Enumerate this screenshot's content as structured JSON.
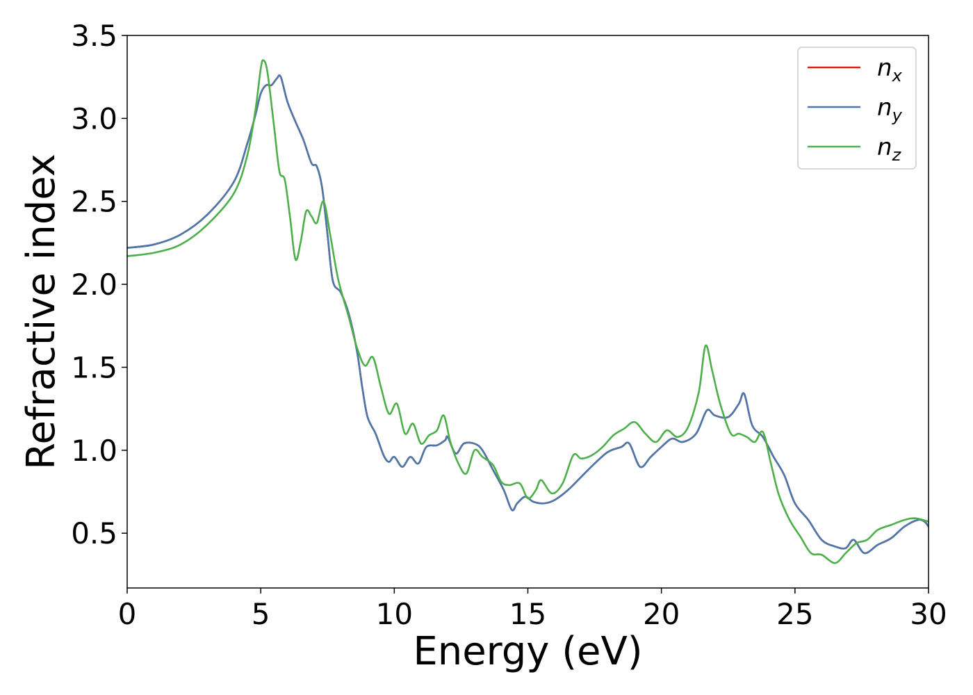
{
  "chart_data": {
    "type": "line",
    "title": "",
    "xlabel": "Energy (eV)",
    "ylabel": "Refractive index",
    "xlim": [
      0,
      30
    ],
    "ylim": [
      0.17,
      3.5
    ],
    "xticks": [
      0,
      5,
      10,
      15,
      20,
      25,
      30
    ],
    "yticks": [
      0.5,
      1.0,
      1.5,
      2.0,
      2.5,
      3.0,
      3.5
    ],
    "xtick_labels": [
      "0",
      "5",
      "10",
      "15",
      "20",
      "25",
      "30"
    ],
    "ytick_labels": [
      "0.5",
      "1.0",
      "1.5",
      "2.0",
      "2.5",
      "3.0",
      "3.5"
    ],
    "grid": false,
    "legend_position": "top-right",
    "series": [
      {
        "name": "n_x",
        "legend_base": "n",
        "legend_sub": "x",
        "color": "#e41a1c",
        "points": [
          [
            0,
            2.22
          ],
          [
            1,
            2.24
          ],
          [
            2,
            2.3
          ],
          [
            3,
            2.42
          ],
          [
            4,
            2.62
          ],
          [
            4.5,
            2.85
          ],
          [
            4.8,
            3.02
          ],
          [
            5.0,
            3.15
          ],
          [
            5.2,
            3.2
          ],
          [
            5.4,
            3.2
          ],
          [
            5.6,
            3.24
          ],
          [
            5.75,
            3.25
          ],
          [
            6.0,
            3.1
          ],
          [
            6.3,
            2.98
          ],
          [
            6.6,
            2.87
          ],
          [
            6.9,
            2.73
          ],
          [
            7.1,
            2.71
          ],
          [
            7.3,
            2.58
          ],
          [
            7.5,
            2.3
          ],
          [
            7.7,
            2.02
          ],
          [
            8.0,
            1.95
          ],
          [
            8.3,
            1.82
          ],
          [
            8.6,
            1.6
          ],
          [
            8.8,
            1.38
          ],
          [
            9.0,
            1.2
          ],
          [
            9.3,
            1.1
          ],
          [
            9.6,
            0.97
          ],
          [
            9.8,
            0.93
          ],
          [
            10.0,
            0.96
          ],
          [
            10.3,
            0.9
          ],
          [
            10.6,
            0.96
          ],
          [
            10.9,
            0.92
          ],
          [
            11.2,
            1.02
          ],
          [
            11.6,
            1.03
          ],
          [
            11.9,
            1.06
          ],
          [
            12.0,
            1.08
          ],
          [
            12.3,
            0.98
          ],
          [
            12.6,
            1.04
          ],
          [
            13.0,
            1.04
          ],
          [
            13.3,
            1.0
          ],
          [
            13.7,
            0.88
          ],
          [
            14.1,
            0.76
          ],
          [
            14.4,
            0.64
          ],
          [
            14.6,
            0.68
          ],
          [
            14.9,
            0.72
          ],
          [
            15.2,
            0.69
          ],
          [
            15.6,
            0.68
          ],
          [
            16.0,
            0.7
          ],
          [
            16.5,
            0.76
          ],
          [
            17.0,
            0.84
          ],
          [
            17.5,
            0.92
          ],
          [
            18.0,
            0.99
          ],
          [
            18.5,
            1.02
          ],
          [
            18.8,
            1.04
          ],
          [
            19.2,
            0.9
          ],
          [
            19.6,
            0.96
          ],
          [
            20.0,
            1.02
          ],
          [
            20.4,
            1.07
          ],
          [
            20.8,
            1.05
          ],
          [
            21.3,
            1.1
          ],
          [
            21.7,
            1.24
          ],
          [
            22.0,
            1.21
          ],
          [
            22.5,
            1.2
          ],
          [
            22.9,
            1.28
          ],
          [
            23.1,
            1.34
          ],
          [
            23.4,
            1.15
          ],
          [
            23.8,
            1.08
          ],
          [
            24.2,
            0.96
          ],
          [
            24.6,
            0.85
          ],
          [
            25.0,
            0.68
          ],
          [
            25.5,
            0.58
          ],
          [
            26.0,
            0.46
          ],
          [
            26.5,
            0.42
          ],
          [
            26.9,
            0.41
          ],
          [
            27.2,
            0.46
          ],
          [
            27.6,
            0.38
          ],
          [
            28.1,
            0.43
          ],
          [
            28.6,
            0.47
          ],
          [
            29.1,
            0.54
          ],
          [
            29.6,
            0.58
          ],
          [
            29.85,
            0.57
          ],
          [
            30.0,
            0.54
          ]
        ]
      },
      {
        "name": "n_y",
        "legend_base": "n",
        "legend_sub": "y",
        "color": "#4a78ab",
        "points": [
          [
            0,
            2.22
          ],
          [
            1,
            2.24
          ],
          [
            2,
            2.3
          ],
          [
            3,
            2.42
          ],
          [
            4,
            2.62
          ],
          [
            4.5,
            2.85
          ],
          [
            4.8,
            3.02
          ],
          [
            5.0,
            3.15
          ],
          [
            5.2,
            3.2
          ],
          [
            5.4,
            3.2
          ],
          [
            5.6,
            3.24
          ],
          [
            5.75,
            3.25
          ],
          [
            6.0,
            3.1
          ],
          [
            6.3,
            2.98
          ],
          [
            6.6,
            2.87
          ],
          [
            6.9,
            2.73
          ],
          [
            7.1,
            2.71
          ],
          [
            7.3,
            2.58
          ],
          [
            7.5,
            2.3
          ],
          [
            7.7,
            2.02
          ],
          [
            8.0,
            1.95
          ],
          [
            8.3,
            1.82
          ],
          [
            8.6,
            1.6
          ],
          [
            8.8,
            1.38
          ],
          [
            9.0,
            1.2
          ],
          [
            9.3,
            1.1
          ],
          [
            9.6,
            0.97
          ],
          [
            9.8,
            0.93
          ],
          [
            10.0,
            0.96
          ],
          [
            10.3,
            0.9
          ],
          [
            10.6,
            0.96
          ],
          [
            10.9,
            0.92
          ],
          [
            11.2,
            1.02
          ],
          [
            11.6,
            1.03
          ],
          [
            11.9,
            1.06
          ],
          [
            12.0,
            1.08
          ],
          [
            12.3,
            0.98
          ],
          [
            12.6,
            1.04
          ],
          [
            13.0,
            1.04
          ],
          [
            13.3,
            1.0
          ],
          [
            13.7,
            0.88
          ],
          [
            14.1,
            0.76
          ],
          [
            14.4,
            0.64
          ],
          [
            14.6,
            0.68
          ],
          [
            14.9,
            0.72
          ],
          [
            15.2,
            0.69
          ],
          [
            15.6,
            0.68
          ],
          [
            16.0,
            0.7
          ],
          [
            16.5,
            0.76
          ],
          [
            17.0,
            0.84
          ],
          [
            17.5,
            0.92
          ],
          [
            18.0,
            0.99
          ],
          [
            18.5,
            1.02
          ],
          [
            18.8,
            1.04
          ],
          [
            19.2,
            0.9
          ],
          [
            19.6,
            0.96
          ],
          [
            20.0,
            1.02
          ],
          [
            20.4,
            1.07
          ],
          [
            20.8,
            1.05
          ],
          [
            21.3,
            1.1
          ],
          [
            21.7,
            1.24
          ],
          [
            22.0,
            1.21
          ],
          [
            22.5,
            1.2
          ],
          [
            22.9,
            1.28
          ],
          [
            23.1,
            1.34
          ],
          [
            23.4,
            1.15
          ],
          [
            23.8,
            1.08
          ],
          [
            24.2,
            0.96
          ],
          [
            24.6,
            0.85
          ],
          [
            25.0,
            0.68
          ],
          [
            25.5,
            0.58
          ],
          [
            26.0,
            0.46
          ],
          [
            26.5,
            0.42
          ],
          [
            26.9,
            0.41
          ],
          [
            27.2,
            0.46
          ],
          [
            27.6,
            0.38
          ],
          [
            28.1,
            0.43
          ],
          [
            28.6,
            0.47
          ],
          [
            29.1,
            0.54
          ],
          [
            29.6,
            0.58
          ],
          [
            29.85,
            0.57
          ],
          [
            30.0,
            0.54
          ]
        ]
      },
      {
        "name": "n_z",
        "legend_base": "n",
        "legend_sub": "z",
        "color": "#4daf4a",
        "points": [
          [
            0,
            2.17
          ],
          [
            1,
            2.19
          ],
          [
            2,
            2.24
          ],
          [
            3,
            2.36
          ],
          [
            4,
            2.55
          ],
          [
            4.5,
            2.78
          ],
          [
            4.8,
            3.05
          ],
          [
            5.0,
            3.3
          ],
          [
            5.1,
            3.35
          ],
          [
            5.25,
            3.28
          ],
          [
            5.5,
            2.95
          ],
          [
            5.7,
            2.68
          ],
          [
            5.9,
            2.63
          ],
          [
            6.1,
            2.4
          ],
          [
            6.3,
            2.15
          ],
          [
            6.5,
            2.26
          ],
          [
            6.7,
            2.44
          ],
          [
            6.9,
            2.41
          ],
          [
            7.1,
            2.37
          ],
          [
            7.35,
            2.5
          ],
          [
            7.6,
            2.3
          ],
          [
            7.9,
            2.03
          ],
          [
            8.3,
            1.8
          ],
          [
            8.6,
            1.62
          ],
          [
            8.9,
            1.51
          ],
          [
            9.2,
            1.56
          ],
          [
            9.5,
            1.38
          ],
          [
            9.8,
            1.22
          ],
          [
            10.1,
            1.28
          ],
          [
            10.4,
            1.1
          ],
          [
            10.7,
            1.16
          ],
          [
            11.0,
            1.04
          ],
          [
            11.3,
            1.09
          ],
          [
            11.6,
            1.12
          ],
          [
            11.85,
            1.21
          ],
          [
            12.1,
            1.05
          ],
          [
            12.4,
            0.92
          ],
          [
            12.7,
            0.86
          ],
          [
            13.0,
            1.0
          ],
          [
            13.3,
            0.96
          ],
          [
            13.7,
            0.91
          ],
          [
            14.0,
            0.81
          ],
          [
            14.3,
            0.79
          ],
          [
            14.7,
            0.8
          ],
          [
            15.0,
            0.71
          ],
          [
            15.3,
            0.76
          ],
          [
            15.5,
            0.82
          ],
          [
            15.9,
            0.74
          ],
          [
            16.3,
            0.8
          ],
          [
            16.7,
            0.97
          ],
          [
            17.0,
            0.95
          ],
          [
            17.4,
            0.97
          ],
          [
            17.8,
            1.02
          ],
          [
            18.2,
            1.09
          ],
          [
            18.6,
            1.13
          ],
          [
            19.0,
            1.17
          ],
          [
            19.4,
            1.1
          ],
          [
            19.8,
            1.05
          ],
          [
            20.2,
            1.12
          ],
          [
            20.6,
            1.08
          ],
          [
            21.0,
            1.14
          ],
          [
            21.4,
            1.35
          ],
          [
            21.65,
            1.63
          ],
          [
            21.9,
            1.48
          ],
          [
            22.2,
            1.28
          ],
          [
            22.6,
            1.1
          ],
          [
            22.9,
            1.1
          ],
          [
            23.2,
            1.08
          ],
          [
            23.5,
            1.05
          ],
          [
            23.8,
            1.11
          ],
          [
            24.1,
            0.92
          ],
          [
            24.4,
            0.73
          ],
          [
            24.8,
            0.58
          ],
          [
            25.2,
            0.48
          ],
          [
            25.6,
            0.38
          ],
          [
            26.0,
            0.37
          ],
          [
            26.5,
            0.32
          ],
          [
            26.9,
            0.38
          ],
          [
            27.3,
            0.44
          ],
          [
            27.7,
            0.46
          ],
          [
            28.1,
            0.52
          ],
          [
            28.6,
            0.55
          ],
          [
            29.1,
            0.58
          ],
          [
            29.5,
            0.59
          ],
          [
            30.0,
            0.57
          ]
        ]
      }
    ]
  }
}
